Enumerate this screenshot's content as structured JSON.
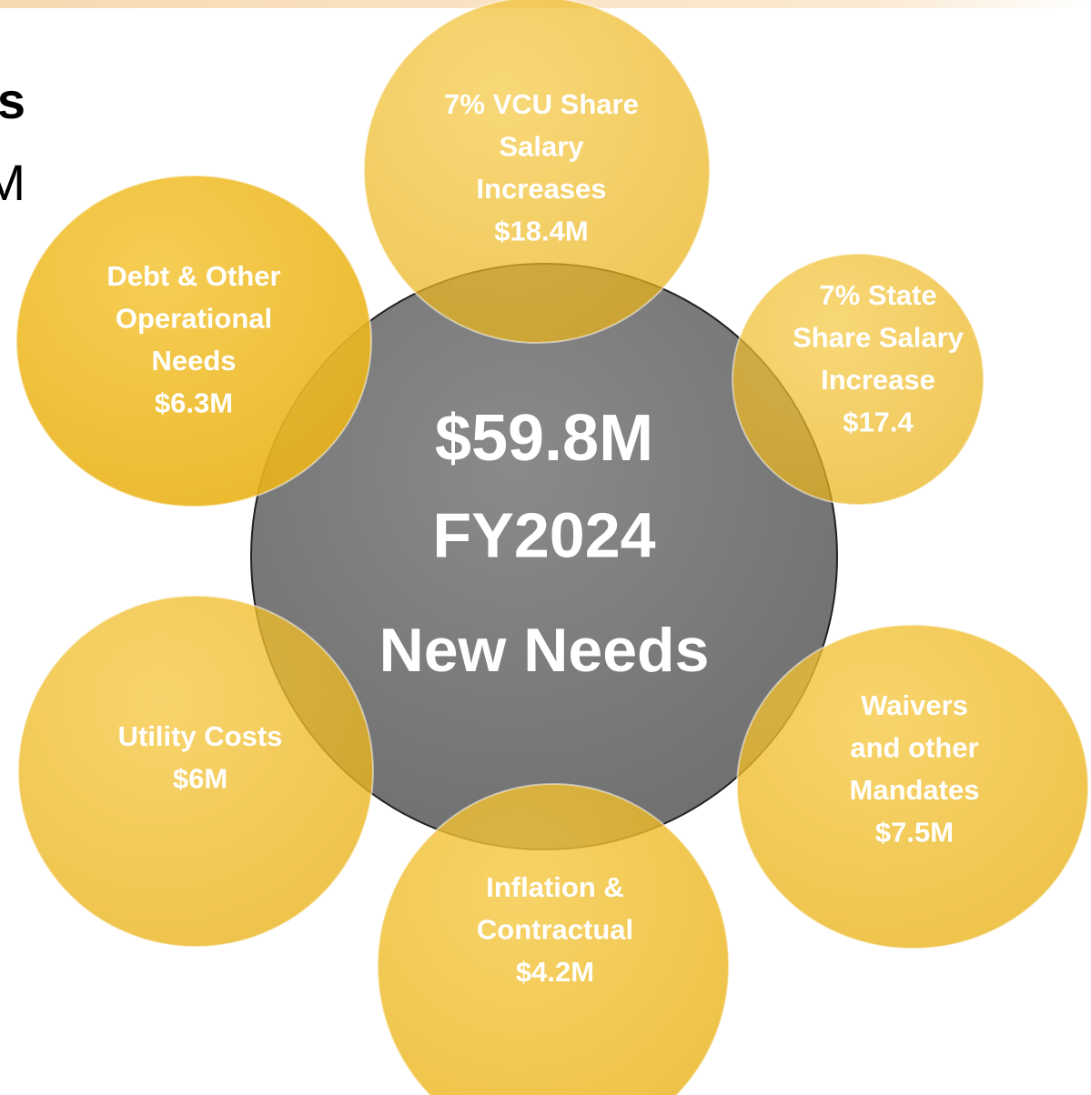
{
  "cropped_text": [
    "s",
    "M"
  ],
  "center": {
    "lines": [
      "$59.8M",
      "FY2024",
      "New Needs"
    ]
  },
  "nodes": [
    {
      "lines": [
        "7% VCU Share",
        "Salary",
        "Increases",
        "$18.4M"
      ]
    },
    {
      "lines": [
        "7% State",
        "Share Salary",
        "Increase",
        "$17.4"
      ]
    },
    {
      "lines": [
        "Waivers",
        "and other",
        "Mandates",
        "$7.5M"
      ]
    },
    {
      "lines": [
        "Inflation &",
        "Contractual",
        "$4.2M"
      ]
    },
    {
      "lines": [
        "Utility Costs",
        "$6M"
      ]
    },
    {
      "lines": [
        "Debt & Other",
        "Operational",
        "Needs",
        "$6.3M"
      ]
    }
  ]
}
